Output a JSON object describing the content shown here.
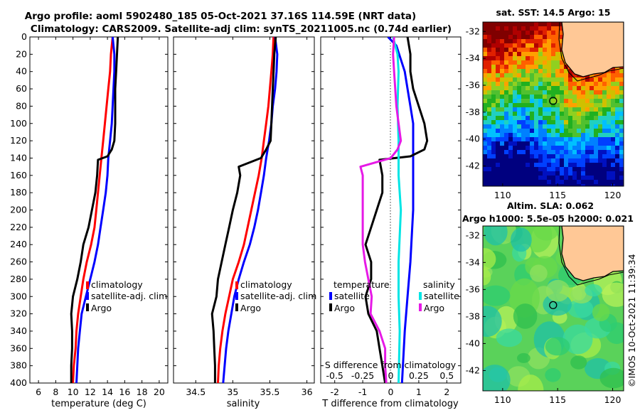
{
  "title_line1": "Argo profile: aoml 5902480_185 05-Oct-2021 37.16S 114.59E (NRT data)",
  "title_line2": "Climatology: CARS2009. Satellite-adj clim: synTS_20211005.nc (0.74d earlier)",
  "watermark": "©IMOS 10-Oct-2021 11:39:34",
  "colors": {
    "climatology": "#ff0000",
    "satellite": "#0000ff",
    "argo": "#000000",
    "satellite_s": "#00e5e5",
    "argo_s": "#e619e6"
  },
  "depth_axis": {
    "ticks": [
      "0",
      "20",
      "40",
      "60",
      "80",
      "100",
      "120",
      "140",
      "160",
      "180",
      "200",
      "220",
      "240",
      "260",
      "280",
      "300",
      "320",
      "340",
      "360",
      "380",
      "400"
    ]
  },
  "legend_labels": {
    "climatology": "climatology",
    "satellite_adj": "satellite-adj. clim",
    "argo": "Argo",
    "temperature": "temperature",
    "salinity": "salinity",
    "satellite": "satellite"
  },
  "chart_data": [
    {
      "type": "line",
      "name": "temperature",
      "xlabel": "temperature (deg C)",
      "xlim": [
        5,
        21
      ],
      "xticks": [
        6,
        8,
        10,
        12,
        14,
        16,
        18,
        20
      ],
      "ylim": [
        0,
        400
      ],
      "series": [
        {
          "name": "climatology",
          "depth": [
            0,
            20,
            40,
            60,
            80,
            100,
            120,
            140,
            160,
            180,
            200,
            220,
            240,
            260,
            280,
            300,
            320,
            340,
            360,
            380,
            400
          ],
          "values": [
            14.6,
            14.4,
            14.3,
            14.1,
            13.9,
            13.7,
            13.5,
            13.3,
            13.1,
            12.9,
            12.7,
            12.5,
            12.1,
            11.6,
            11.2,
            10.9,
            10.6,
            10.4,
            10.3,
            10.1,
            10.0
          ]
        },
        {
          "name": "satellite-adj. clim",
          "depth": [
            0,
            20,
            40,
            60,
            80,
            100,
            120,
            140,
            160,
            180,
            200,
            220,
            240,
            260,
            280,
            300,
            320,
            340,
            360,
            380,
            400
          ],
          "values": [
            14.6,
            14.8,
            14.8,
            14.7,
            14.6,
            14.5,
            14.3,
            14.1,
            14.0,
            13.8,
            13.5,
            13.2,
            12.9,
            12.5,
            12.0,
            11.5,
            11.0,
            10.8,
            10.6,
            10.5,
            10.4
          ]
        },
        {
          "name": "Argo",
          "depth": [
            0,
            20,
            40,
            60,
            80,
            100,
            120,
            130,
            138,
            142,
            160,
            180,
            200,
            220,
            240,
            260,
            280,
            300,
            320,
            340,
            360,
            380,
            400
          ],
          "values": [
            15.2,
            15.1,
            15.0,
            14.9,
            14.9,
            14.9,
            14.8,
            14.5,
            14.0,
            12.9,
            12.8,
            12.6,
            12.2,
            11.8,
            11.2,
            10.9,
            10.5,
            10.0,
            9.8,
            9.9,
            9.9,
            9.8,
            9.8
          ]
        }
      ]
    },
    {
      "type": "line",
      "name": "salinity",
      "xlabel": "salinity",
      "xlim": [
        34.2,
        36.1
      ],
      "xticks": [
        34.5,
        35,
        35.5,
        36
      ],
      "ylim": [
        0,
        400
      ],
      "series": [
        {
          "name": "climatology",
          "depth": [
            0,
            20,
            40,
            60,
            80,
            100,
            120,
            140,
            160,
            180,
            200,
            220,
            240,
            260,
            280,
            300,
            320,
            340,
            360,
            380,
            400
          ],
          "values": [
            35.55,
            35.54,
            35.52,
            35.5,
            35.48,
            35.45,
            35.42,
            35.39,
            35.35,
            35.3,
            35.25,
            35.2,
            35.15,
            35.08,
            35.0,
            34.95,
            34.9,
            34.86,
            34.83,
            34.81,
            34.8
          ]
        },
        {
          "name": "satellite-adj. clim",
          "depth": [
            0,
            20,
            40,
            60,
            80,
            100,
            120,
            140,
            160,
            180,
            200,
            220,
            240,
            260,
            280,
            300,
            320,
            340,
            360,
            380,
            400
          ],
          "values": [
            35.57,
            35.6,
            35.59,
            35.57,
            35.54,
            35.52,
            35.49,
            35.45,
            35.42,
            35.38,
            35.34,
            35.29,
            35.23,
            35.15,
            35.08,
            35.02,
            34.98,
            34.94,
            34.91,
            34.89,
            34.87
          ]
        },
        {
          "name": "Argo",
          "depth": [
            0,
            20,
            40,
            60,
            80,
            100,
            120,
            130,
            140,
            150,
            160,
            180,
            200,
            220,
            240,
            260,
            280,
            300,
            320,
            340,
            360,
            380,
            400
          ],
          "values": [
            35.58,
            35.56,
            35.55,
            35.54,
            35.53,
            35.52,
            35.51,
            35.45,
            35.38,
            35.08,
            35.1,
            35.06,
            35.0,
            34.95,
            34.9,
            34.85,
            34.8,
            34.78,
            34.72,
            34.74,
            34.75,
            34.76,
            34.76
          ]
        }
      ]
    },
    {
      "type": "line",
      "name": "difference",
      "xlabel": "T difference from climatology",
      "xlim": [
        -2.5,
        2.5
      ],
      "xticks": [
        "-2",
        "-1",
        "0",
        "1",
        "2"
      ],
      "x2label": "S difference from climatology",
      "x2ticks": [
        "-0.5",
        "-0.25",
        "0",
        "0.25",
        "0.5"
      ],
      "ylim": [
        0,
        400
      ],
      "series": [
        {
          "name": "temperature satellite",
          "depth": [
            0,
            10,
            20,
            40,
            60,
            80,
            100,
            140,
            200,
            260,
            300,
            340,
            400
          ],
          "values": [
            -0.1,
            0.2,
            0.3,
            0.5,
            0.6,
            0.7,
            0.8,
            0.8,
            0.8,
            0.7,
            0.6,
            0.5,
            0.4
          ]
        },
        {
          "name": "temperature Argo",
          "depth": [
            0,
            20,
            40,
            60,
            80,
            100,
            120,
            130,
            138,
            142,
            160,
            180,
            200,
            220,
            240,
            260,
            280,
            300,
            320,
            340,
            360,
            380,
            400
          ],
          "values": [
            0.6,
            0.7,
            0.7,
            0.8,
            1.0,
            1.2,
            1.3,
            1.2,
            0.7,
            -0.4,
            -0.3,
            -0.3,
            -0.5,
            -0.7,
            -0.9,
            -0.7,
            -0.7,
            -0.9,
            -0.8,
            -0.5,
            -0.4,
            -0.3,
            -0.2
          ]
        },
        {
          "name": "salinity satellite",
          "depth": [
            0,
            20,
            40,
            80,
            120,
            160,
            200,
            260,
            300,
            340,
            400
          ],
          "values": [
            0.02,
            0.06,
            0.07,
            0.06,
            0.07,
            0.07,
            0.09,
            0.07,
            0.07,
            0.08,
            0.07
          ]
        },
        {
          "name": "salinity Argo",
          "depth": [
            0,
            20,
            40,
            60,
            80,
            100,
            120,
            130,
            140,
            150,
            160,
            180,
            200,
            220,
            240,
            260,
            280,
            300,
            320,
            340,
            360,
            380,
            400
          ],
          "values": [
            0.03,
            0.02,
            0.03,
            0.04,
            0.05,
            0.07,
            0.09,
            0.06,
            0.0,
            -0.27,
            -0.25,
            -0.25,
            -0.25,
            -0.25,
            -0.25,
            -0.23,
            -0.2,
            -0.17,
            -0.18,
            -0.1,
            -0.05,
            -0.05,
            -0.04
          ]
        }
      ]
    },
    {
      "type": "heatmap",
      "name": "sst_map",
      "title": "sat. SST: 14.5 Argo: 15",
      "xticks": [
        "110",
        "115",
        "120"
      ],
      "yticks": [
        "-32",
        "-34",
        "-36",
        "-38",
        "-40",
        "-42"
      ],
      "lon_range": [
        108.2,
        121.0
      ],
      "lat_range": [
        -43.5,
        -31.3
      ],
      "argo_location": [
        114.59,
        -37.16
      ]
    },
    {
      "type": "heatmap",
      "name": "sla_map",
      "title_line1": "Altim. SLA: 0.062",
      "title_line2": "Argo h1000: 5.5e-05 h2000: 0.021",
      "xticks": [
        "110",
        "115",
        "120"
      ],
      "yticks": [
        "-32",
        "-34",
        "-36",
        "-38",
        "-40",
        "-42"
      ],
      "lon_range": [
        108.2,
        121.0
      ],
      "lat_range": [
        -43.5,
        -31.3
      ],
      "argo_location": [
        114.59,
        -37.16
      ]
    }
  ]
}
